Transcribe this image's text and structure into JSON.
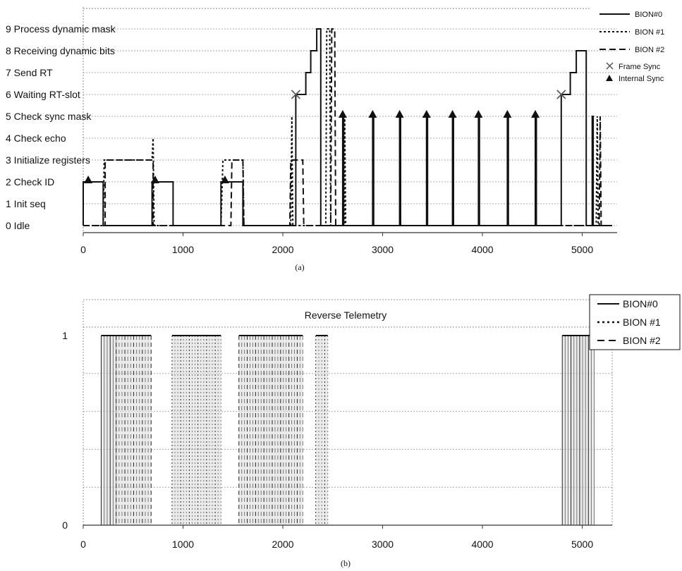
{
  "chart_data": [
    {
      "type": "line",
      "caption": "(a)",
      "states": [
        "0 Idle",
        "1 Init seq",
        "2 Check ID",
        "3 Initialize registers",
        "4 Check echo",
        "5 Check sync mask",
        "6 Waiting RT-slot",
        "7 Send RT",
        "8 Receiving dynamic bits",
        "9 Process dynamic mask"
      ],
      "xticks": [
        0,
        1000,
        2000,
        3000,
        4000,
        5000
      ],
      "xlim": [
        0,
        5300
      ],
      "ylim": [
        0,
        9
      ],
      "legend_position": "top-right",
      "legend": [
        "BION#0",
        "BION #1",
        "BION #2",
        "Frame Sync",
        "Internal Sync"
      ],
      "series": [
        {
          "name": "BION#0",
          "style": "solid",
          "points": [
            [
              0,
              0
            ],
            [
              0,
              2
            ],
            [
              200,
              2
            ],
            [
              200,
              0
            ],
            [
              690,
              0
            ],
            [
              690,
              2
            ],
            [
              900,
              2
            ],
            [
              900,
              0
            ],
            [
              1380,
              0
            ],
            [
              1380,
              2
            ],
            [
              1600,
              2
            ],
            [
              1600,
              0
            ],
            [
              2130,
              0
            ],
            [
              2130,
              6
            ],
            [
              2230,
              6
            ],
            [
              2230,
              7
            ],
            [
              2280,
              7
            ],
            [
              2280,
              8
            ],
            [
              2340,
              8
            ],
            [
              2340,
              9
            ],
            [
              2380,
              9
            ],
            [
              2380,
              0
            ],
            [
              2600,
              0
            ],
            [
              2600,
              5
            ],
            [
              2610,
              5
            ],
            [
              2610,
              0
            ],
            [
              2900,
              0
            ],
            [
              2900,
              5
            ],
            [
              2910,
              5
            ],
            [
              2910,
              0
            ],
            [
              3170,
              0
            ],
            [
              3170,
              5
            ],
            [
              3180,
              5
            ],
            [
              3180,
              0
            ],
            [
              3440,
              0
            ],
            [
              3440,
              5
            ],
            [
              3450,
              5
            ],
            [
              3450,
              0
            ],
            [
              3700,
              0
            ],
            [
              3700,
              5
            ],
            [
              3710,
              5
            ],
            [
              3710,
              0
            ],
            [
              3960,
              0
            ],
            [
              3960,
              5
            ],
            [
              3970,
              5
            ],
            [
              3970,
              0
            ],
            [
              4250,
              0
            ],
            [
              4250,
              5
            ],
            [
              4260,
              5
            ],
            [
              4260,
              0
            ],
            [
              4530,
              0
            ],
            [
              4530,
              5
            ],
            [
              4540,
              5
            ],
            [
              4540,
              0
            ],
            [
              4790,
              0
            ],
            [
              4790,
              6
            ],
            [
              4880,
              6
            ],
            [
              4880,
              7
            ],
            [
              4940,
              7
            ],
            [
              4940,
              8
            ],
            [
              5040,
              8
            ],
            [
              5040,
              0
            ],
            [
              5100,
              0
            ],
            [
              5100,
              5
            ],
            [
              5110,
              5
            ],
            [
              5110,
              0
            ],
            [
              5300,
              0
            ]
          ]
        },
        {
          "name": "BION #1",
          "style": "dotted",
          "points": [
            [
              0,
              0
            ],
            [
              200,
              0
            ],
            [
              210,
              3
            ],
            [
              690,
              3
            ],
            [
              700,
              4
            ],
            [
              710,
              0
            ],
            [
              1380,
              0
            ],
            [
              1400,
              3
            ],
            [
              1600,
              3
            ],
            [
              1610,
              0
            ],
            [
              2080,
              0
            ],
            [
              2090,
              5
            ],
            [
              2100,
              0
            ],
            [
              2430,
              0
            ],
            [
              2440,
              9
            ],
            [
              2470,
              9
            ],
            [
              2480,
              0
            ],
            [
              2620,
              0
            ],
            [
              2620,
              5
            ],
            [
              2630,
              0
            ],
            [
              5140,
              0
            ],
            [
              5150,
              5
            ],
            [
              5160,
              0
            ],
            [
              5300,
              0
            ]
          ]
        },
        {
          "name": "BION #2",
          "style": "dashed",
          "points": [
            [
              0,
              0
            ],
            [
              220,
              0
            ],
            [
              220,
              3
            ],
            [
              700,
              3
            ],
            [
              700,
              0
            ],
            [
              1380,
              0
            ],
            [
              1380,
              0
            ],
            [
              1480,
              0
            ],
            [
              1490,
              3
            ],
            [
              1600,
              3
            ],
            [
              1610,
              0
            ],
            [
              2070,
              0
            ],
            [
              2080,
              3
            ],
            [
              2200,
              3
            ],
            [
              2210,
              0
            ],
            [
              2480,
              0
            ],
            [
              2490,
              9
            ],
            [
              2520,
              9
            ],
            [
              2530,
              0
            ],
            [
              5170,
              0
            ],
            [
              5180,
              5
            ],
            [
              5190,
              0
            ],
            [
              5300,
              0
            ]
          ]
        }
      ],
      "frame_sync_x": [
        2130,
        4790
      ],
      "internal_sync": [
        [
          50,
          2
        ],
        [
          720,
          2
        ],
        [
          1420,
          2
        ],
        [
          2600,
          5
        ],
        [
          2900,
          5
        ],
        [
          3170,
          5
        ],
        [
          3440,
          5
        ],
        [
          3700,
          5
        ],
        [
          3960,
          5
        ],
        [
          4250,
          5
        ],
        [
          4530,
          5
        ]
      ]
    },
    {
      "type": "line",
      "caption": "(b)",
      "title": "Reverse Telemetry",
      "xticks": [
        0,
        1000,
        2000,
        3000,
        4000,
        5000
      ],
      "yticks": [
        0,
        1
      ],
      "xlim": [
        0,
        5300
      ],
      "ylim": [
        0,
        1
      ],
      "legend_position": "top-right",
      "legend": [
        "BION#0",
        "BION #1",
        "BION #2"
      ],
      "pulse_bands": [
        {
          "name": "BION#0",
          "x": [
            180,
            330
          ]
        },
        {
          "name": "BION #2",
          "x": [
            330,
            680
          ]
        },
        {
          "name": "BION #1",
          "x": [
            890,
            1380
          ]
        },
        {
          "name": "BION #2",
          "x": [
            1560,
            2200
          ]
        },
        {
          "name": "BION #1",
          "x": [
            2330,
            2450
          ]
        },
        {
          "name": "BION#0",
          "x": [
            4800,
            5120
          ]
        }
      ]
    }
  ]
}
